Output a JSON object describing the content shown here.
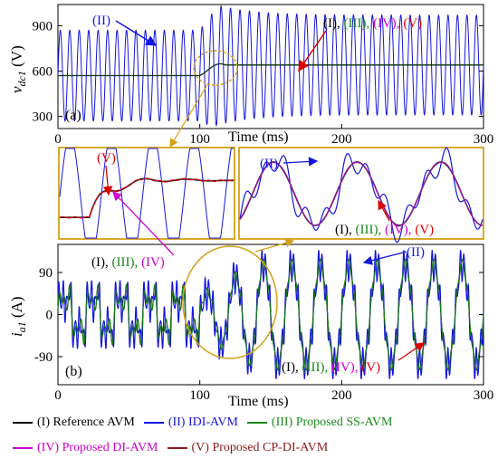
{
  "chart_data": [
    {
      "type": "line",
      "panel_label": "(a)",
      "ylabel": "v_dc1 (V)",
      "xlabel": "Time (ms)",
      "xlim": [
        0,
        300
      ],
      "ylim": [
        220,
        1040
      ],
      "yticks": [
        300,
        600,
        900
      ],
      "xticks": [
        0,
        100,
        200,
        300
      ],
      "ytick_labels": [
        "300",
        "600",
        "900"
      ],
      "xtick_labels": [
        "0",
        "100",
        "200",
        "300"
      ],
      "grid": false,
      "series": [
        {
          "name": "(II)",
          "color": "#1515e0",
          "description_values": {
            "before_100ms": {
              "center": 570,
              "amplitude": 300,
              "freq_hz": 150
            },
            "after_100ms": {
              "center": 640,
              "amplitude": 330,
              "freq_hz": 150
            }
          }
        },
        {
          "name": "(I), (III), (IV), (V)",
          "color": "#000000",
          "description_values": {
            "before_100ms": 570,
            "after_110ms": 640
          }
        }
      ],
      "annotations": {
        "ii": "(II)",
        "others_parts": [
          {
            "text": "(I),",
            "color": "#000000"
          },
          {
            "text": "(III),",
            "color": "#1a8a1a"
          },
          {
            "text": "(IV),",
            "color": "#cc00cc"
          },
          {
            "text": "(V)",
            "color": "#dd0000"
          }
        ]
      }
    },
    {
      "type": "line",
      "panel_label": "zoom-left",
      "annotation": "(V)",
      "arrow_label_parts": [
        {
          "text": "(I),",
          "color": "#000000"
        },
        {
          "text": "(III),",
          "color": "#1a8a1a"
        },
        {
          "text": "(IV)",
          "color": "#cc00cc"
        }
      ]
    },
    {
      "type": "line",
      "panel_label": "zoom-right",
      "annotation_ii": "(II)",
      "annotation_parts": [
        {
          "text": "(I),",
          "color": "#000000"
        },
        {
          "text": "(III),",
          "color": "#1a8a1a"
        },
        {
          "text": "(IV),",
          "color": "#cc00cc"
        },
        {
          "text": "(V)",
          "color": "#dd0000"
        }
      ]
    },
    {
      "type": "line",
      "panel_label": "(b)",
      "ylabel": "i_a1 (A)",
      "xlabel": "Time (ms)",
      "xlim": [
        0,
        300
      ],
      "ylim": [
        -150,
        150
      ],
      "yticks": [
        -90,
        0,
        90
      ],
      "xticks": [
        0,
        100,
        200,
        300
      ],
      "ytick_labels": [
        "-90",
        "0",
        "90"
      ],
      "xtick_labels": [
        "0",
        "100",
        "200",
        "300"
      ],
      "grid": false,
      "annotation_ii": "(II)",
      "annotation_parts": [
        {
          "text": "(I),",
          "color": "#000000"
        },
        {
          "text": "(III),",
          "color": "#1a8a1a"
        },
        {
          "text": "(IV),",
          "color": "#cc00cc"
        },
        {
          "text": "(V)",
          "color": "#dd0000"
        }
      ]
    }
  ],
  "legend": {
    "row1": [
      {
        "label": "(I) Reference AVM",
        "color": "#000000"
      },
      {
        "label": "(II) IDI-AVM",
        "color": "#1515e0"
      },
      {
        "label": "(III) Proposed SS-AVM",
        "color": "#1a8a1a"
      }
    ],
    "row2": [
      {
        "label": "(IV) Proposed DI-AVM",
        "color": "#cc00cc"
      },
      {
        "label": "(V) Proposed CP-DI-AVM",
        "color": "#8b1a1a"
      }
    ]
  },
  "axis_text": {
    "a_ylabel_main": "v",
    "a_ylabel_sub": "dc1",
    "a_ylabel_unit": " (V)",
    "b_ylabel_main": "i",
    "b_ylabel_sub": "a1",
    "b_ylabel_unit": " (A)"
  }
}
